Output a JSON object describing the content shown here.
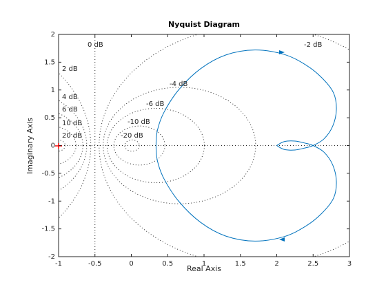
{
  "chart_data": {
    "type": "nyquist",
    "title": "Nyquist Diagram",
    "xlabel": "Real Axis",
    "ylabel": "Imaginary Axis",
    "xlim": [
      -1,
      3
    ],
    "ylim": [
      -2,
      2
    ],
    "xticks": [
      -1,
      -0.5,
      0,
      0.5,
      1,
      1.5,
      2,
      2.5,
      3
    ],
    "yticks": [
      -2,
      -1.5,
      -1,
      -0.5,
      0,
      0.5,
      1,
      1.5,
      2
    ],
    "grid_circles": [
      {
        "db": 0,
        "label": "0 dB"
      },
      {
        "db": 2,
        "label": "2 dB"
      },
      {
        "db": 4,
        "label": "4 dB"
      },
      {
        "db": 6,
        "label": "6 dB"
      },
      {
        "db": 10,
        "label": "10 dB"
      },
      {
        "db": 20,
        "label": "20 dB"
      },
      {
        "db": -20,
        "label": "-20 dB"
      },
      {
        "db": -10,
        "label": "-10 dB"
      },
      {
        "db": -6,
        "label": "-6 dB"
      },
      {
        "db": -4,
        "label": "-4 dB"
      },
      {
        "db": -2,
        "label": "-2 dB"
      }
    ],
    "series": [
      {
        "color": "#0072bd",
        "x": [
          2.0,
          2.1,
          2.25,
          2.4,
          2.5,
          2.65,
          2.77,
          2.82,
          2.78,
          2.62,
          2.4,
          2.1,
          1.7,
          1.3,
          0.95,
          0.65,
          0.45,
          0.36,
          0.34,
          0.36,
          0.45,
          0.65,
          0.95,
          1.3,
          1.7,
          2.1,
          2.4,
          2.62,
          2.78,
          2.82,
          2.77,
          2.65,
          2.5,
          2.4,
          2.25,
          2.1,
          2.0
        ],
        "y": [
          0,
          0.07,
          0.08,
          0.04,
          0,
          -0.12,
          -0.35,
          -0.65,
          -0.95,
          -1.22,
          -1.45,
          -1.64,
          -1.72,
          -1.63,
          -1.38,
          -1.0,
          -0.6,
          -0.28,
          0,
          0.28,
          0.6,
          1.0,
          1.38,
          1.63,
          1.72,
          1.64,
          1.45,
          1.22,
          0.95,
          0.65,
          0.35,
          0.12,
          0,
          -0.04,
          -0.08,
          -0.07,
          0
        ]
      }
    ]
  }
}
